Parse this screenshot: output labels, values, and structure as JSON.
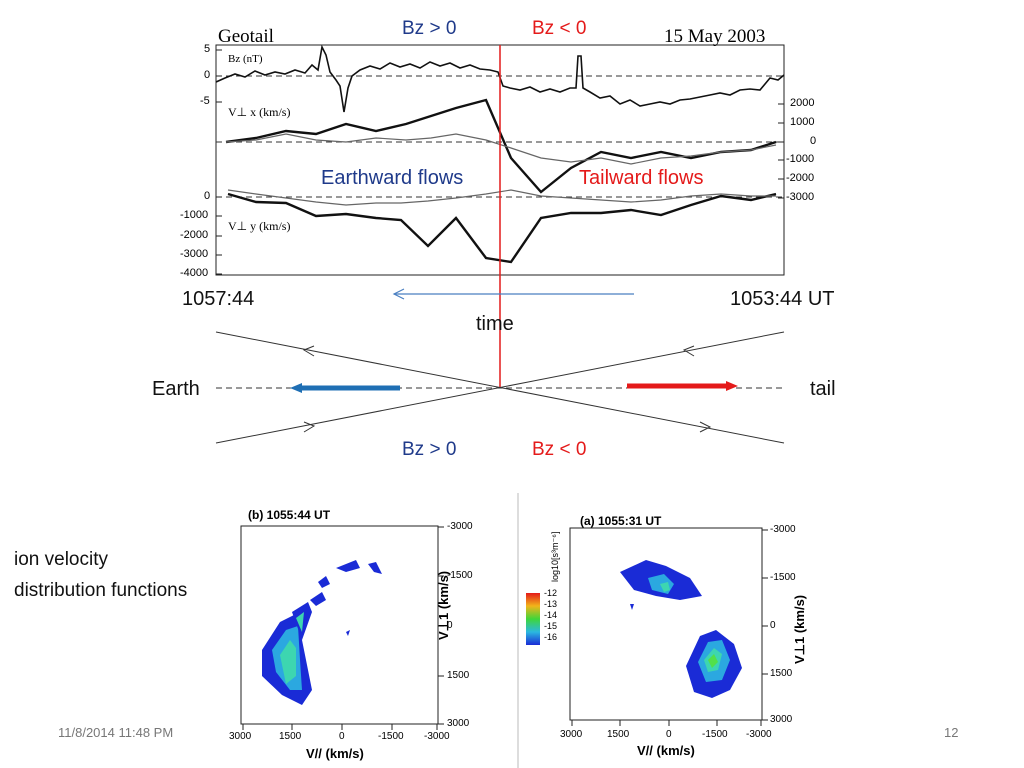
{
  "colors": {
    "bz_positive": "#1f3a8a",
    "bz_negative": "#e41a1a",
    "earthward_arrow": "#1f6fb4",
    "tailward_arrow": "#e41a1a",
    "time_arrow": "#4a7fc1"
  },
  "top_panel": {
    "spacecraft": "Geotail",
    "date": "15 May 2003",
    "bz_positive_label": "Bz > 0",
    "bz_negative_label": "Bz < 0",
    "earthward_label": "Earthward flows",
    "tailward_label": "Tailward flows",
    "bz_panel_label": "Bz (nT)",
    "vx_panel_label": "V⊥ x (km/s)",
    "vy_panel_label": "V⊥ y (km/s)",
    "bz_ticks": [
      "5",
      "0",
      "-5"
    ],
    "vx_ticks": [
      "2000",
      "1000",
      "0",
      "-1000",
      "-2000",
      "-3000"
    ],
    "vy_ticks": [
      "0",
      "-1000",
      "-2000",
      "-3000",
      "-4000"
    ]
  },
  "time_axis": {
    "left_time": "1057:44",
    "right_time": "1053:44 UT",
    "label": "time"
  },
  "schematic": {
    "earth_label": "Earth",
    "tail_label": "tail",
    "bz_positive_label": "Bz > 0",
    "bz_negative_label": "Bz < 0"
  },
  "vdf": {
    "caption_line1": "ion velocity",
    "caption_line2": "distribution functions",
    "panel_b": {
      "title": "(b) 1055:44 UT",
      "x_ticks": [
        "3000",
        "1500",
        "0",
        "-1500",
        "-3000"
      ],
      "y_ticks": [
        "-3000",
        "-1500",
        "0",
        "1500",
        "3000"
      ],
      "xlabel": "V// (km/s)",
      "ylabel": "V⊥1 (km/s)"
    },
    "panel_a": {
      "title": "(a) 1055:31 UT",
      "x_ticks": [
        "3000",
        "1500",
        "0",
        "-1500",
        "-3000"
      ],
      "y_ticks": [
        "-3000",
        "-1500",
        "0",
        "1500",
        "3000"
      ],
      "xlabel": "V// (km/s)",
      "ylabel": "V⊥1 (km/s)",
      "colorbar_label": "log10[s³m⁻⁶]",
      "colorbar_ticks": [
        "-12",
        "-13",
        "-14",
        "-15",
        "-16"
      ]
    }
  },
  "footer": {
    "datetime": "11/8/2014 11:48 PM",
    "page": "12"
  }
}
